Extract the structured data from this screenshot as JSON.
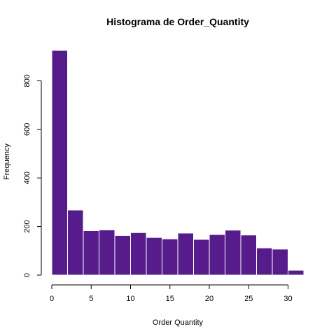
{
  "chart_data": {
    "type": "bar",
    "title": "Histograma de Order_Quantity",
    "xlabel": "Order Quantity",
    "ylabel": "Frequency",
    "bar_color": "#561c8b",
    "bin_edges": [
      0,
      2,
      4,
      6,
      8,
      10,
      12,
      14,
      16,
      18,
      20,
      22,
      24,
      26,
      28,
      30,
      32
    ],
    "values": [
      925,
      268,
      183,
      186,
      163,
      175,
      155,
      149,
      173,
      147,
      167,
      185,
      165,
      112,
      107,
      20
    ],
    "xlim": [
      0,
      32
    ],
    "ylim": [
      0,
      925
    ],
    "x_ticks": [
      0,
      5,
      10,
      15,
      20,
      25,
      30
    ],
    "y_ticks": [
      0,
      200,
      400,
      600,
      800
    ],
    "grid": false,
    "legend": "none"
  }
}
